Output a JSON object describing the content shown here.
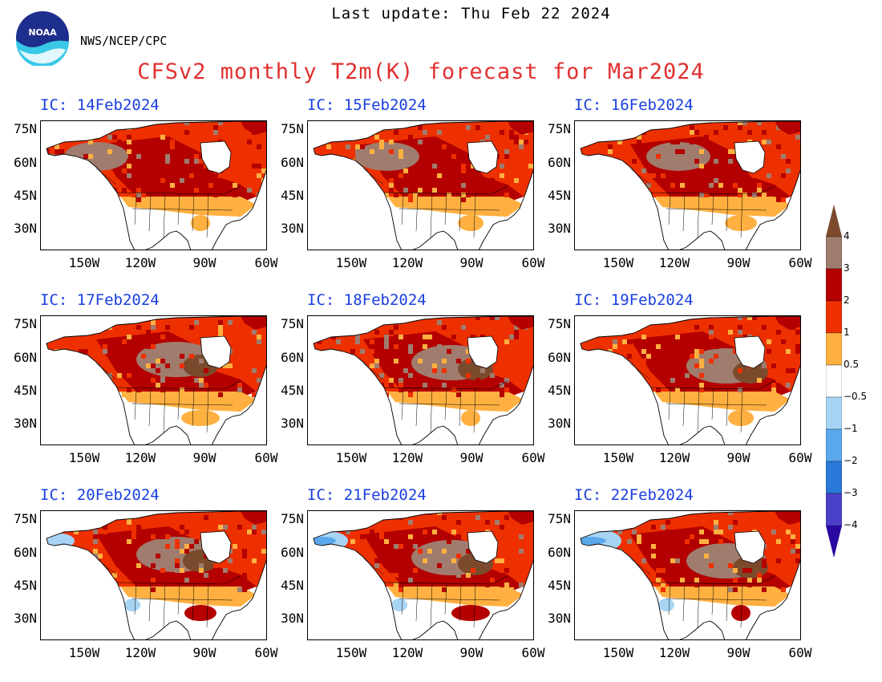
{
  "header": {
    "last_update": "Last update: Thu Feb 22 2024",
    "agency": "NWS/NCEP/CPC",
    "title": "CFSv2 monthly T2m(K) forecast for Mar2024",
    "logo_text": "NOAA"
  },
  "axes": {
    "lat_labels": [
      "75N",
      "60N",
      "45N",
      "30N"
    ],
    "lon_labels": [
      "150W",
      "120W",
      "90W",
      "60W"
    ]
  },
  "panels": [
    {
      "ic": "IC: 14Feb2024"
    },
    {
      "ic": "IC: 15Feb2024"
    },
    {
      "ic": "IC: 16Feb2024"
    },
    {
      "ic": "IC: 17Feb2024"
    },
    {
      "ic": "IC: 18Feb2024"
    },
    {
      "ic": "IC: 19Feb2024"
    },
    {
      "ic": "IC: 20Feb2024"
    },
    {
      "ic": "IC: 21Feb2024"
    },
    {
      "ic": "IC: 22Feb2024"
    }
  ],
  "colorbar": {
    "labels": [
      "4",
      "3",
      "2",
      "1",
      "0.5",
      "−0.5",
      "−1",
      "−2",
      "−3",
      "−4"
    ],
    "colors": {
      "above_4": "#7b4a2c",
      "3_to_4": "#a07c6e",
      "2_to_3": "#b40000",
      "1_to_2": "#ee3000",
      "0.5_to_1": "#ffb040",
      "neutral": "#ffffff",
      "m1_to_m0.5": "#a8d4f4",
      "m2_to_m1": "#5aa8ec",
      "m3_to_m2": "#2a78d8",
      "m4_to_m3": "#4a40c8",
      "below_m4": "#2808a0"
    }
  }
}
